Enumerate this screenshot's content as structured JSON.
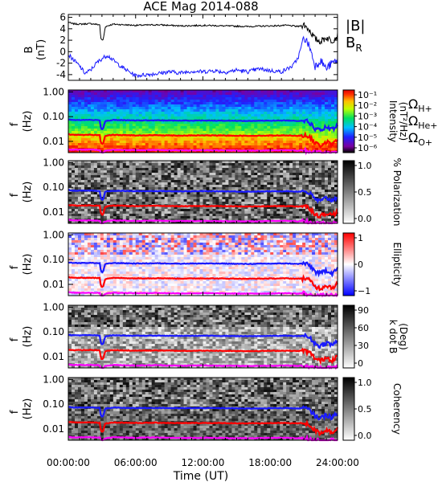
{
  "chart_data": {
    "type": "spectrogram",
    "title": "ACE Mag 2014-088",
    "xlabel": "Time (UT)",
    "x_ticks": [
      "00:00:00",
      "06:00:00",
      "12:00:00",
      "18:00:00",
      "24:00:00"
    ],
    "x_range_hours": [
      0,
      24
    ],
    "top_panel": {
      "ylabel": "B",
      "yunit": "(nT)",
      "ylim": [
        -5,
        6.5
      ],
      "y_ticks": [
        "6",
        "4",
        "2",
        "0",
        "-2",
        "-4"
      ],
      "y_tick_values": [
        6,
        4,
        2,
        0,
        -2,
        -4
      ],
      "legend": [
        {
          "name": "|B|",
          "color": "#000000"
        },
        {
          "name": "B",
          "sub": "R",
          "color": "#1a1aff"
        }
      ],
      "series": [
        {
          "name": "|B|",
          "color": "#000000",
          "x_hours": [
            0,
            0.3,
            1,
            2,
            2.8,
            2.9,
            3.1,
            3.3,
            4,
            6,
            8,
            10,
            12,
            14,
            16,
            18,
            19.5,
            20.5,
            21.0,
            21.5,
            22.0,
            22.5,
            23,
            23.5,
            24
          ],
          "values": [
            5.2,
            4.9,
            4.8,
            4.9,
            4.7,
            2.2,
            2.0,
            4.4,
            4.8,
            4.6,
            4.7,
            4.5,
            4.6,
            4.5,
            4.4,
            4.5,
            4.6,
            4.4,
            4.7,
            3.8,
            2.2,
            1.8,
            2.5,
            1.9,
            2.8
          ]
        },
        {
          "name": "B_R",
          "color": "#1a1aff",
          "x_hours": [
            0,
            0.5,
            1,
            1.5,
            2,
            2.5,
            3,
            3.5,
            4,
            5,
            6,
            7,
            8,
            9,
            10,
            11,
            12,
            13,
            14,
            15,
            16,
            17,
            18,
            19,
            20,
            20.5,
            21,
            21.5,
            22,
            22.5,
            23,
            23.5,
            24
          ],
          "values": [
            -0.5,
            -1.5,
            -2.5,
            -3.8,
            -3.2,
            -2.0,
            -1.2,
            -0.6,
            -1.5,
            -3.0,
            -4.2,
            -4.0,
            -3.8,
            -3.5,
            -3.7,
            -3.4,
            -3.5,
            -3.3,
            -3.6,
            -3.2,
            -3.5,
            -3.0,
            -3.3,
            -3.5,
            -2.5,
            -1.0,
            2.5,
            1.0,
            -2.5,
            -1.5,
            -3.0,
            -2.0,
            -1.5
          ]
        }
      ]
    },
    "spectral_panels": [
      {
        "id": "intensity",
        "ylabel": "f",
        "yunit": "(Hz)",
        "colorbar_label": "Intensity",
        "colorbar_unit": "(nT²/Hz)",
        "colorbar_ticks": [
          "10⁻¹",
          "10⁻²",
          "10⁻³",
          "10⁻⁴",
          "10⁻⁵",
          "10⁻⁶"
        ],
        "colormap": "rainbow",
        "legend": [
          {
            "name": "Ω",
            "sub": "H+",
            "color": "#1a1aff"
          },
          {
            "name": "Ω",
            "sub": "He+",
            "color": "#ff0000"
          },
          {
            "name": "Ω",
            "sub": "O+",
            "color": "#ff00ff"
          }
        ]
      },
      {
        "id": "polarization",
        "ylabel": "f",
        "yunit": "(Hz)",
        "colorbar_label": "% Polarization",
        "colorbar_unit": "",
        "colorbar_ticks": [
          "1.0",
          "0.5",
          "0.0"
        ],
        "colormap": "gray"
      },
      {
        "id": "ellipticity",
        "ylabel": "f",
        "yunit": "(Hz)",
        "colorbar_label": "Ellipticity",
        "colorbar_unit": "",
        "colorbar_ticks": [
          "1",
          "0",
          "−1"
        ],
        "colormap": "bwr"
      },
      {
        "id": "kdotb",
        "ylabel": "f",
        "yunit": "(Hz)",
        "colorbar_label": "k dot B",
        "colorbar_unit": "(Deg)",
        "colorbar_ticks": [
          "90",
          "60",
          "30",
          "0"
        ],
        "colormap": "gray"
      },
      {
        "id": "coherency",
        "ylabel": "f",
        "yunit": "(Hz)",
        "colorbar_label": "Coherency",
        "colorbar_unit": "",
        "colorbar_ticks": [
          "1.0",
          "0.5",
          "0.0"
        ],
        "colormap": "gray"
      }
    ],
    "frequency_axis": {
      "scale": "log",
      "ylim_hz": [
        0.0035,
        1.2
      ],
      "tick_labels": [
        "1.00",
        "0.10",
        "0.01"
      ],
      "tick_values": [
        1.0,
        0.1,
        0.01
      ]
    },
    "gyrofrequency_lines": [
      {
        "name": "H+",
        "color": "#1a1aff",
        "values_hz": [
          0.078,
          0.074,
          0.073,
          0.074,
          0.071,
          0.033,
          0.031,
          0.067,
          0.073,
          0.07,
          0.071,
          0.069,
          0.07,
          0.069,
          0.067,
          0.069,
          0.07,
          0.067,
          0.072,
          0.058,
          0.033,
          0.027,
          0.038,
          0.029,
          0.042
        ]
      },
      {
        "name": "He+",
        "color": "#ff0000",
        "values_hz": [
          0.0195,
          0.0185,
          0.0183,
          0.0185,
          0.0178,
          0.0083,
          0.0078,
          0.0168,
          0.0183,
          0.0175,
          0.0178,
          0.0172,
          0.0175,
          0.0172,
          0.0168,
          0.0172,
          0.0175,
          0.0168,
          0.018,
          0.0145,
          0.0083,
          0.0068,
          0.0095,
          0.0073,
          0.0105
        ]
      },
      {
        "name": "O+",
        "color": "#ff00ff",
        "values_hz": [
          0.0049,
          0.0046,
          0.0046,
          0.0046,
          0.0045,
          0.0035,
          0.0035,
          0.0042,
          0.0046,
          0.0044,
          0.0045,
          0.0043,
          0.0044,
          0.0043,
          0.0042,
          0.0043,
          0.0044,
          0.0042,
          0.0045,
          0.0036,
          0.0035,
          0.0035,
          0.0035,
          0.0035,
          0.0035
        ]
      }
    ]
  }
}
